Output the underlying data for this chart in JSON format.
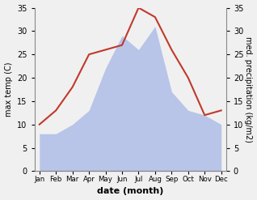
{
  "months": [
    "Jan",
    "Feb",
    "Mar",
    "Apr",
    "May",
    "Jun",
    "Jul",
    "Aug",
    "Sep",
    "Oct",
    "Nov",
    "Dec"
  ],
  "temperature": [
    10,
    13,
    18,
    25,
    26,
    27,
    35,
    33,
    26,
    20,
    12,
    13
  ],
  "precipitation": [
    8,
    8,
    10,
    13,
    22,
    29,
    26,
    31,
    17,
    13,
    12,
    10
  ],
  "temp_color": "#c0392b",
  "precip_fill_color": "#b8c4e8",
  "ylim_left": [
    0,
    35
  ],
  "ylim_right": [
    0,
    35
  ],
  "yticks": [
    0,
    5,
    10,
    15,
    20,
    25,
    30,
    35
  ],
  "xlabel": "date (month)",
  "ylabel_left": "max temp (C)",
  "ylabel_right": "med. precipitation (kg/m2)",
  "bg_color": "#f0f0f0",
  "spine_color": "#888888"
}
